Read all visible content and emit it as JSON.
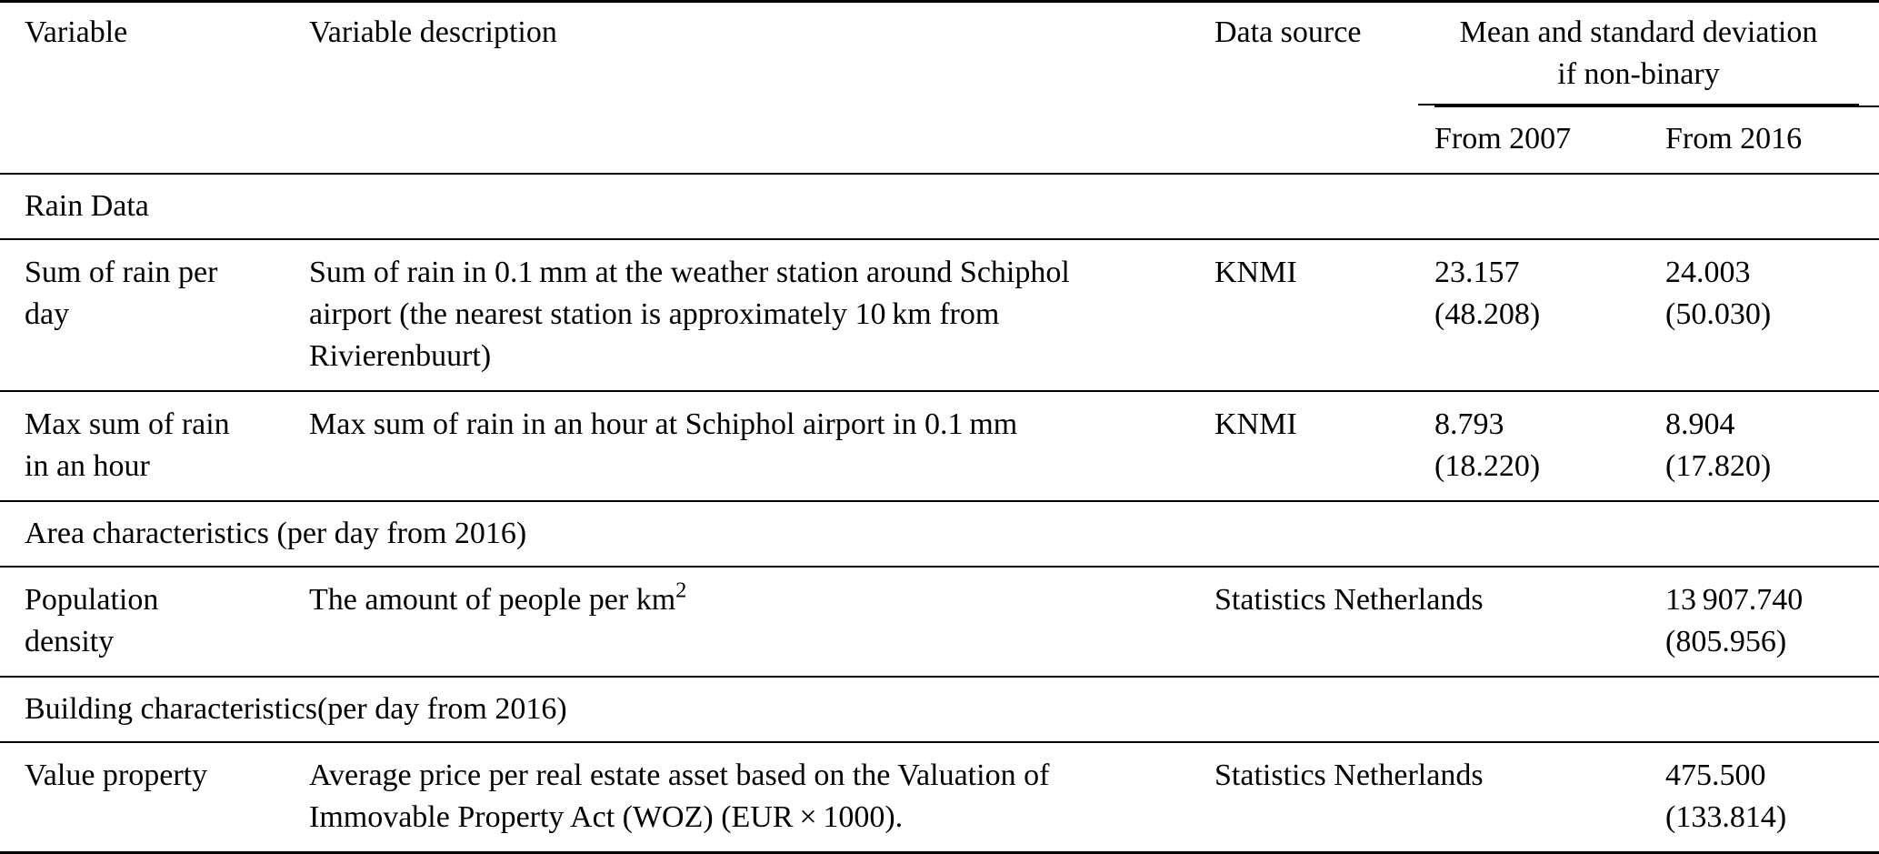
{
  "table": {
    "header": {
      "variable": "Variable",
      "description": "Variable description",
      "source": "Data source",
      "stats_group": "Mean and standard deviation\nif non-binary",
      "from2007": "From 2007",
      "from2016": "From 2016"
    },
    "rows": [
      {
        "type": "section",
        "label": "Rain Data"
      },
      {
        "type": "data",
        "variable": "Sum of rain per\nday",
        "description": "Sum of rain in 0.1 mm at the weather station around Schiphol\nairport (the nearest station is approximately 10 km from\nRivierenbuurt)",
        "source": "KNMI",
        "from2007": {
          "mean": "23.157",
          "sd": "(48.208)"
        },
        "from2016": {
          "mean": "24.003",
          "sd": "(50.030)"
        }
      },
      {
        "type": "data",
        "variable": "Max sum of rain\nin an hour",
        "description": "Max sum of rain in an hour at Schiphol airport in 0.1 mm",
        "source": "KNMI",
        "from2007": {
          "mean": "8.793",
          "sd": "(18.220)"
        },
        "from2016": {
          "mean": "8.904",
          "sd": "(17.820)"
        }
      },
      {
        "type": "section",
        "label": "Area characteristics (per day from 2016)"
      },
      {
        "type": "data",
        "variable": "Population\ndensity",
        "description": "The amount of people per km",
        "description_sup": "2",
        "source": "Statistics Netherlands",
        "from2016": {
          "mean": "13 907.740",
          "sd": "(805.956)"
        }
      },
      {
        "type": "section",
        "label": "Building characteristics(per day from 2016)"
      },
      {
        "type": "data",
        "variable": "Value property",
        "description": "Average price per real estate asset based on the Valuation of\nImmovable Property Act (WOZ) (EUR × 1000).",
        "source": "Statistics Netherlands",
        "from2016": {
          "mean": "475.500",
          "sd": "(133.814)"
        }
      }
    ]
  }
}
